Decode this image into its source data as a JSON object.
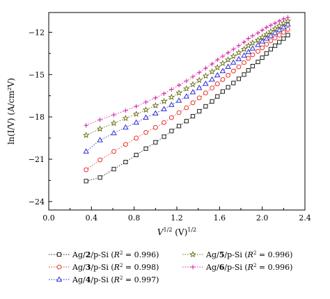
{
  "chart_data": {
    "type": "scatter",
    "xlabel_main": "V",
    "xlabel_sup1": "1/2",
    "xlabel_unit": " (V)",
    "xlabel_sup2": "1/2",
    "ylabel": "ln(I/V) (A/cm²V)",
    "xlim": [
      0.0,
      2.4
    ],
    "ylim": [
      -24.6,
      -10.6
    ],
    "xticks": [
      0.0,
      0.4,
      0.8,
      1.2,
      1.6,
      2.0,
      2.4
    ],
    "xtick_labels": [
      "0.0",
      "0.4",
      "0.8",
      "1.2",
      "1.6",
      "2.0",
      "2.4"
    ],
    "yticks": [
      -24,
      -21,
      -18,
      -15,
      -12
    ],
    "ytick_labels": [
      "−24",
      "−21",
      "−18",
      "−15",
      "−12"
    ],
    "x": [
      0.35,
      0.48,
      0.61,
      0.72,
      0.82,
      0.91,
      1.0,
      1.08,
      1.15,
      1.22,
      1.29,
      1.35,
      1.41,
      1.47,
      1.53,
      1.58,
      1.63,
      1.68,
      1.73,
      1.78,
      1.83,
      1.87,
      1.91,
      1.96,
      2.0,
      2.04,
      2.08,
      2.12,
      2.16,
      2.2,
      2.24
    ],
    "series": [
      {
        "name": "Ag/2/p-Si",
        "r2": "0.996",
        "legend_prefix": "Ag/",
        "legend_num": "2",
        "legend_suffix": "/p-Si (",
        "legend_r": "R",
        "legend_sup": "2",
        "legend_eq": " = 0.996)",
        "marker": "square",
        "color": "#1a1a1a",
        "y": [
          -22.55,
          -22.3,
          -21.7,
          -21.2,
          -20.7,
          -20.25,
          -19.8,
          -19.4,
          -19.0,
          -18.65,
          -18.3,
          -17.95,
          -17.6,
          -17.25,
          -16.9,
          -16.55,
          -16.2,
          -15.9,
          -15.6,
          -15.3,
          -15.0,
          -14.7,
          -14.4,
          -14.1,
          -13.8,
          -13.5,
          -13.2,
          -12.95,
          -12.7,
          -12.45,
          -12.2
        ]
      },
      {
        "name": "Ag/3/p-Si",
        "r2": "0.998",
        "legend_prefix": "Ag/",
        "legend_num": "3",
        "legend_suffix": "/p-Si (",
        "legend_r": "R",
        "legend_sup": "2",
        "legend_eq": " = 0.998)",
        "marker": "circle",
        "color": "#e8312a",
        "y": [
          -21.75,
          -21.05,
          -20.45,
          -19.95,
          -19.5,
          -19.1,
          -18.75,
          -18.4,
          -18.05,
          -17.7,
          -17.35,
          -17.0,
          -16.65,
          -16.3,
          -15.95,
          -15.65,
          -15.35,
          -15.05,
          -14.75,
          -14.45,
          -14.15,
          -13.85,
          -13.6,
          -13.35,
          -13.1,
          -12.85,
          -12.6,
          -12.4,
          -12.2,
          -12.0,
          -11.8
        ]
      },
      {
        "name": "Ag/4/p-Si",
        "r2": "0.997",
        "legend_prefix": "Ag/",
        "legend_num": "4",
        "legend_suffix": "/p-Si (",
        "legend_r": "R",
        "legend_sup": "2",
        "legend_eq": " = 0.997)",
        "marker": "triangle",
        "color": "#2b2bd6",
        "y": [
          -20.45,
          -19.65,
          -19.15,
          -18.75,
          -18.4,
          -18.05,
          -17.75,
          -17.45,
          -17.15,
          -16.85,
          -16.55,
          -16.25,
          -15.95,
          -15.65,
          -15.35,
          -15.05,
          -14.75,
          -14.45,
          -14.15,
          -13.9,
          -13.65,
          -13.4,
          -13.15,
          -12.9,
          -12.65,
          -12.45,
          -12.25,
          -12.05,
          -11.85,
          -11.65,
          -11.45
        ]
      },
      {
        "name": "Ag/5/p-Si",
        "r2": "0.996",
        "legend_prefix": "Ag/",
        "legend_num": "5",
        "legend_suffix": "/p-Si (",
        "legend_r": "R",
        "legend_sup": "2",
        "legend_eq": " = 0.996)",
        "marker": "star",
        "color": "#6b6b10",
        "y": [
          -19.3,
          -18.85,
          -18.45,
          -18.1,
          -17.8,
          -17.5,
          -17.2,
          -16.9,
          -16.6,
          -16.3,
          -16.0,
          -15.7,
          -15.4,
          -15.1,
          -14.8,
          -14.5,
          -14.2,
          -13.95,
          -13.7,
          -13.45,
          -13.2,
          -12.95,
          -12.75,
          -12.55,
          -12.35,
          -12.15,
          -11.95,
          -11.75,
          -11.55,
          -11.35,
          -11.2
        ]
      },
      {
        "name": "Ag/6/p-Si",
        "r2": "0.996",
        "legend_prefix": "Ag/",
        "legend_num": "6",
        "legend_suffix": "/p-Si (",
        "legend_r": "R",
        "legend_sup": "2",
        "legend_eq": " = 0.996)",
        "marker": "plus",
        "color": "#d21fa0",
        "y": [
          -18.6,
          -18.2,
          -17.85,
          -17.55,
          -17.25,
          -16.95,
          -16.65,
          -16.35,
          -16.05,
          -15.75,
          -15.45,
          -15.15,
          -14.85,
          -14.55,
          -14.25,
          -13.95,
          -13.7,
          -13.45,
          -13.2,
          -12.95,
          -12.7,
          -12.45,
          -12.25,
          -12.05,
          -11.85,
          -11.65,
          -11.5,
          -11.35,
          -11.2,
          -11.05,
          -10.95
        ]
      }
    ],
    "legend_location": "bottom",
    "grid": false
  }
}
